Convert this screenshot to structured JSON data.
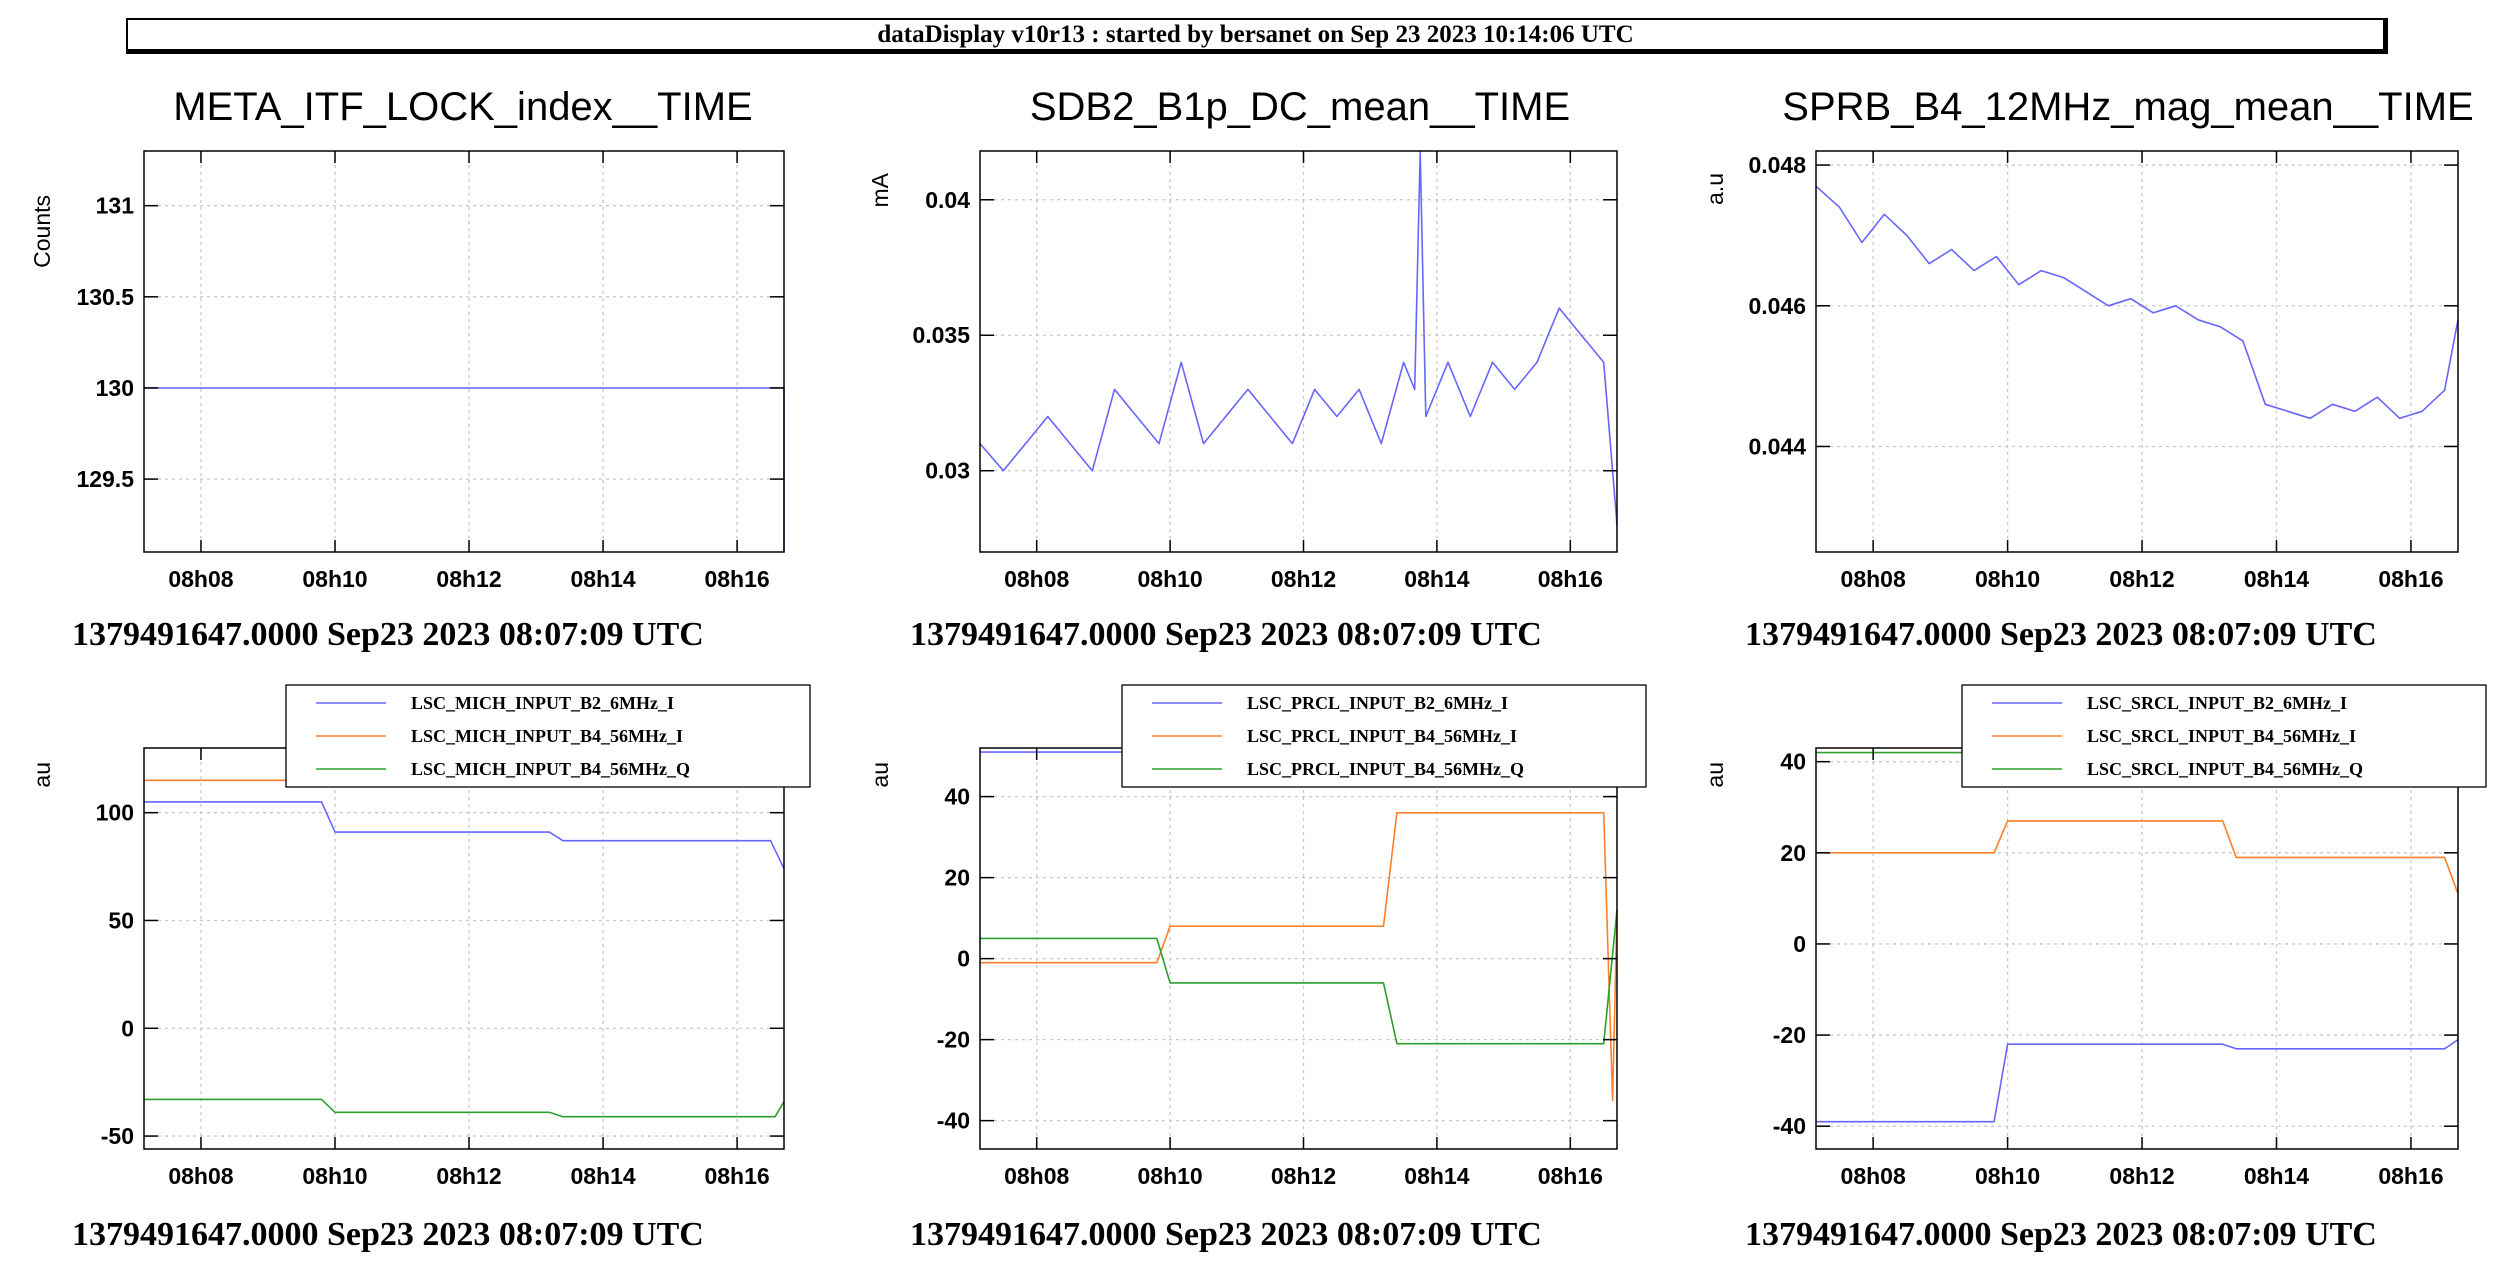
{
  "header": {
    "title": "dataDisplay v10r13 : started by bersanet on Sep 23 2023 10:14:06 UTC"
  },
  "colors": {
    "blue": "#6666ff",
    "orange": "#ff7f2a",
    "green": "#2ca02c"
  },
  "chart_data": [
    {
      "type": "line",
      "title": "META_ITF_LOCK_index__TIME",
      "ylabel": "Counts",
      "xlim": [
        "08:07:09",
        "08:16:42"
      ],
      "xticks": [
        "08h08",
        "08h10",
        "08h12",
        "08h14",
        "08h16"
      ],
      "ylim": [
        129.1,
        131.3
      ],
      "yticks": [
        129.5,
        130,
        130.5,
        131
      ],
      "ytick_labels": [
        "129.5",
        "130",
        "130.5",
        "131"
      ],
      "grid": true,
      "footer": "1379491647.0000 Sep23 2023 08:07:09 UTC",
      "series": [
        {
          "color": "#6666ff",
          "x": [
            "08:07:09",
            "08:16:40",
            "08:16:42",
            "08:16:42"
          ],
          "y": [
            130,
            130,
            130,
            129.1
          ]
        }
      ]
    },
    {
      "type": "line",
      "title": "SDB2_B1p_DC_mean__TIME",
      "ylabel": "mA",
      "xlim": [
        "08:07:09",
        "08:16:42"
      ],
      "xticks": [
        "08h08",
        "08h10",
        "08h12",
        "08h14",
        "08h16"
      ],
      "ylim": [
        0.027,
        0.0418
      ],
      "yticks": [
        0.03,
        0.035,
        0.04
      ],
      "ytick_labels": [
        "0.03",
        "0.035",
        "0.04"
      ],
      "grid": true,
      "footer": "1379491647.0000 Sep23 2023 08:07:09 UTC",
      "series": [
        {
          "color": "#6666ff",
          "x": [
            "08:07:09",
            "08:07:30",
            "08:07:50",
            "08:08:10",
            "08:08:30",
            "08:08:50",
            "08:09:10",
            "08:09:30",
            "08:09:50",
            "08:10:10",
            "08:10:30",
            "08:10:50",
            "08:11:10",
            "08:11:30",
            "08:11:50",
            "08:12:10",
            "08:12:30",
            "08:12:50",
            "08:13:10",
            "08:13:30",
            "08:13:40",
            "08:13:45",
            "08:13:50",
            "08:14:10",
            "08:14:30",
            "08:14:50",
            "08:15:10",
            "08:15:30",
            "08:15:50",
            "08:16:10",
            "08:16:30",
            "08:16:42"
          ],
          "y": [
            0.031,
            0.03,
            0.031,
            0.032,
            0.031,
            0.03,
            0.033,
            0.032,
            0.031,
            0.034,
            0.031,
            0.032,
            0.033,
            0.032,
            0.031,
            0.033,
            0.032,
            0.033,
            0.031,
            0.034,
            0.033,
            0.0418,
            0.032,
            0.034,
            0.032,
            0.034,
            0.033,
            0.034,
            0.036,
            0.035,
            0.034,
            0.028
          ]
        }
      ]
    },
    {
      "type": "line",
      "title": "SPRB_B4_12MHz_mag_mean__TIME",
      "ylabel": "a.u",
      "xlim": [
        "08:07:09",
        "08:16:42"
      ],
      "xticks": [
        "08h08",
        "08h10",
        "08h12",
        "08h14",
        "08h16"
      ],
      "ylim": [
        0.0425,
        0.0482
      ],
      "yticks": [
        0.044,
        0.046,
        0.048
      ],
      "ytick_labels": [
        "0.044",
        "0.046",
        "0.048"
      ],
      "grid": true,
      "footer": "1379491647.0000 Sep23 2023 08:07:09 UTC",
      "series": [
        {
          "color": "#6666ff",
          "x": [
            "08:07:09",
            "08:07:30",
            "08:07:50",
            "08:08:10",
            "08:08:30",
            "08:08:50",
            "08:09:10",
            "08:09:30",
            "08:09:50",
            "08:10:10",
            "08:10:30",
            "08:10:50",
            "08:11:10",
            "08:11:30",
            "08:11:50",
            "08:12:10",
            "08:12:30",
            "08:12:50",
            "08:13:10",
            "08:13:30",
            "08:13:50",
            "08:14:10",
            "08:14:30",
            "08:14:50",
            "08:15:10",
            "08:15:30",
            "08:15:50",
            "08:16:10",
            "08:16:30",
            "08:16:42"
          ],
          "y": [
            0.0477,
            0.0474,
            0.0469,
            0.0473,
            0.047,
            0.0466,
            0.0468,
            0.0465,
            0.0467,
            0.0463,
            0.0465,
            0.0464,
            0.0462,
            0.046,
            0.0461,
            0.0459,
            0.046,
            0.0458,
            0.0457,
            0.0455,
            0.0446,
            0.0445,
            0.0444,
            0.0446,
            0.0445,
            0.0447,
            0.0444,
            0.0445,
            0.0448,
            0.0458
          ]
        }
      ]
    },
    {
      "type": "line",
      "ylabel": "au",
      "xlim": [
        "08:07:09",
        "08:16:42"
      ],
      "xticks": [
        "08h08",
        "08h10",
        "08h12",
        "08h14",
        "08h16"
      ],
      "ylim": [
        -56,
        130
      ],
      "yticks": [
        -50,
        0,
        50,
        100
      ],
      "ytick_labels": [
        "-50",
        "0",
        "50",
        "100"
      ],
      "grid": true,
      "legend": "top-right",
      "footer": "1379491647.0000 Sep23 2023 08:07:09 UTC",
      "series": [
        {
          "name": "LSC_MICH_INPUT_B2_6MHz_I",
          "color": "#6666ff",
          "x": [
            "08:07:09",
            "08:09:48",
            "08:10:00",
            "08:13:12",
            "08:13:24",
            "08:16:30",
            "08:16:42"
          ],
          "y": [
            105,
            105,
            91,
            91,
            87,
            87,
            74
          ]
        },
        {
          "name": "LSC_MICH_INPUT_B4_56MHz_I",
          "color": "#ff7f2a",
          "x": [
            "08:07:09",
            "08:16:42"
          ],
          "y": [
            115,
            115
          ]
        },
        {
          "name": "LSC_MICH_INPUT_B4_56MHz_Q",
          "color": "#2ca02c",
          "x": [
            "08:07:09",
            "08:09:48",
            "08:10:00",
            "08:13:12",
            "08:13:24",
            "08:16:34",
            "08:16:42"
          ],
          "y": [
            -33,
            -33,
            -39,
            -39,
            -41,
            -41,
            -34
          ]
        }
      ]
    },
    {
      "type": "line",
      "ylabel": "au",
      "xlim": [
        "08:07:09",
        "08:16:42"
      ],
      "xticks": [
        "08h08",
        "08h10",
        "08h12",
        "08h14",
        "08h16"
      ],
      "ylim": [
        -47,
        52
      ],
      "yticks": [
        -40,
        -20,
        0,
        20,
        40
      ],
      "ytick_labels": [
        "-40",
        "-20",
        "0",
        "20",
        "40"
      ],
      "grid": true,
      "legend": "top-right",
      "footer": "1379491647.0000 Sep23 2023 08:07:09 UTC",
      "series": [
        {
          "name": "LSC_PRCL_INPUT_B2_6MHz_I",
          "color": "#6666ff",
          "x": [
            "08:07:09",
            "08:16:42"
          ],
          "y": [
            51,
            51
          ]
        },
        {
          "name": "LSC_PRCL_INPUT_B4_56MHz_I",
          "color": "#ff7f2a",
          "x": [
            "08:07:09",
            "08:09:48",
            "08:10:00",
            "08:13:12",
            "08:13:24",
            "08:16:30",
            "08:16:38",
            "08:16:42"
          ],
          "y": [
            -1,
            -1,
            8,
            8,
            36,
            36,
            -35,
            12
          ]
        },
        {
          "name": "LSC_PRCL_INPUT_B4_56MHz_Q",
          "color": "#2ca02c",
          "x": [
            "08:07:09",
            "08:09:48",
            "08:10:00",
            "08:13:12",
            "08:13:24",
            "08:16:30",
            "08:16:42"
          ],
          "y": [
            5,
            5,
            -6,
            -6,
            -21,
            -21,
            12
          ]
        }
      ]
    },
    {
      "type": "line",
      "ylabel": "au",
      "xlim": [
        "08:07:09",
        "08:16:42"
      ],
      "xticks": [
        "08h08",
        "08h10",
        "08h12",
        "08h14",
        "08h16"
      ],
      "ylim": [
        -45,
        43
      ],
      "yticks": [
        -40,
        -20,
        0,
        20,
        40
      ],
      "ytick_labels": [
        "-40",
        "-20",
        "0",
        "20",
        "40"
      ],
      "grid": true,
      "legend": "top-right",
      "footer": "1379491647.0000 Sep23 2023 08:07:09 UTC",
      "series": [
        {
          "name": "LSC_SRCL_INPUT_B2_6MHz_I",
          "color": "#6666ff",
          "x": [
            "08:07:09",
            "08:09:48",
            "08:10:00",
            "08:13:12",
            "08:13:24",
            "08:16:30",
            "08:16:42"
          ],
          "y": [
            -39,
            -39,
            -22,
            -22,
            -23,
            -23,
            -21
          ]
        },
        {
          "name": "LSC_SRCL_INPUT_B4_56MHz_I",
          "color": "#ff7f2a",
          "x": [
            "08:07:09",
            "08:09:48",
            "08:10:00",
            "08:13:12",
            "08:13:24",
            "08:16:30",
            "08:16:42"
          ],
          "y": [
            20,
            20,
            27,
            27,
            19,
            19,
            11
          ]
        },
        {
          "name": "LSC_SRCL_INPUT_B4_56MHz_Q",
          "color": "#2ca02c",
          "x": [
            "08:07:09",
            "08:16:42"
          ],
          "y": [
            42,
            42
          ]
        }
      ]
    }
  ]
}
